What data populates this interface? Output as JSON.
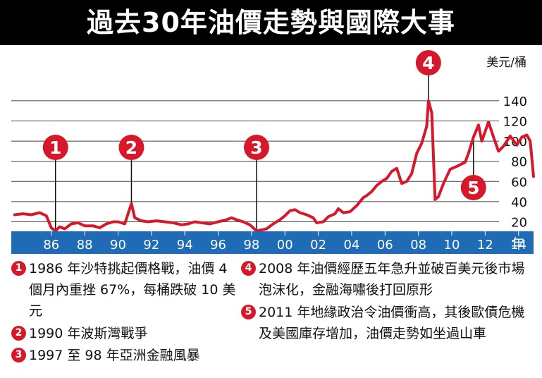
{
  "title": "過去30年油價走勢與國際大事",
  "chart_data": {
    "type": "line",
    "title": "過去30年油價走勢與國際大事",
    "ylabel": "美元/桶",
    "xlabel": "",
    "x_unit": "年",
    "ylim": [
      0,
      150
    ],
    "xlim": [
      1983.6,
      2014.9
    ],
    "yticks": [
      "20",
      "40",
      "60",
      "80",
      "100",
      "120",
      "140"
    ],
    "xticks": [
      "86",
      "88",
      "90",
      "92",
      "94",
      "96",
      "98",
      "00",
      "02",
      "04",
      "06",
      "08",
      "10",
      "12",
      "14"
    ],
    "x_unit_label": "年",
    "grid": true,
    "series": [
      {
        "color": "#d7182a",
        "x": [
          1983.8,
          1984.3,
          1984.8,
          1985.3,
          1985.7,
          1986.0,
          1986.25,
          1986.5,
          1986.8,
          1987.2,
          1987.6,
          1988.0,
          1988.5,
          1988.9,
          1989.3,
          1989.7,
          1990.0,
          1990.4,
          1990.7,
          1990.8,
          1991.0,
          1991.4,
          1991.8,
          1992.3,
          1992.8,
          1993.3,
          1993.8,
          1994.2,
          1994.6,
          1995.0,
          1995.5,
          1996.0,
          1996.5,
          1996.8,
          1997.1,
          1997.5,
          1997.9,
          1998.3,
          1998.6,
          1998.9,
          1999.3,
          1999.7,
          2000.0,
          2000.3,
          2000.6,
          2000.9,
          2001.3,
          2001.7,
          2001.9,
          2002.3,
          2002.6,
          2003.0,
          2003.2,
          2003.5,
          2003.9,
          2004.3,
          2004.7,
          2004.9,
          2005.2,
          2005.5,
          2005.8,
          2006.1,
          2006.4,
          2006.7,
          2007.0,
          2007.3,
          2007.6,
          2007.9,
          2008.2,
          2008.5,
          2008.6,
          2008.8,
          2009.0,
          2009.2,
          2009.5,
          2009.9,
          2010.3,
          2010.8,
          2011.0,
          2011.3,
          2011.6,
          2011.8,
          2012.2,
          2012.5,
          2012.8,
          2013.1,
          2013.5,
          2013.9,
          2014.2,
          2014.5,
          2014.7,
          2014.9
        ],
        "y": [
          27,
          28,
          27,
          29,
          26,
          14,
          11,
          15,
          13,
          18,
          19,
          16,
          16,
          14,
          18,
          20,
          20,
          18,
          33,
          38,
          24,
          21,
          20,
          21,
          20,
          19,
          17,
          18,
          20,
          19,
          18,
          20,
          22,
          24,
          22,
          20,
          17,
          11,
          12,
          13,
          18,
          22,
          26,
          31,
          32,
          29,
          27,
          24,
          19,
          20,
          25,
          28,
          33,
          29,
          30,
          36,
          44,
          46,
          50,
          56,
          60,
          63,
          70,
          73,
          58,
          60,
          68,
          88,
          98,
          115,
          140,
          128,
          42,
          45,
          58,
          72,
          75,
          79,
          88,
          104,
          116,
          100,
          119,
          104,
          90,
          95,
          105,
          96,
          104,
          106,
          100,
          65
        ]
      }
    ],
    "annotations": [
      {
        "label": "1",
        "x": 1986.25
      },
      {
        "label": "2",
        "x": 1990.8
      },
      {
        "label": "3",
        "x": 1998.3
      },
      {
        "label": "4",
        "x": 2008.6
      },
      {
        "label": "5",
        "x": 2011.3
      }
    ]
  },
  "notes": [
    {
      "num": "1",
      "text": "1986 年沙特挑起價格戰，油價 4 個月內重挫 67%，每桶跌破 10 美元"
    },
    {
      "num": "2",
      "text": "1990 年波斯灣戰爭"
    },
    {
      "num": "3",
      "text": "1997 至 98 年亞洲金融風暴"
    },
    {
      "num": "4",
      "text": "2008 年油價經歷五年急升並破百美元後市場泡沫化，金融海嘯後打回原形"
    },
    {
      "num": "5",
      "text": "2011 年地緣政治令油價衝高，其後歐債危機及美國庫存增加，油價走勢如坐過山車"
    }
  ],
  "colors": {
    "accent": "#d7182a",
    "axis_band": "#1f6bb5",
    "title_bg": "#000000"
  }
}
